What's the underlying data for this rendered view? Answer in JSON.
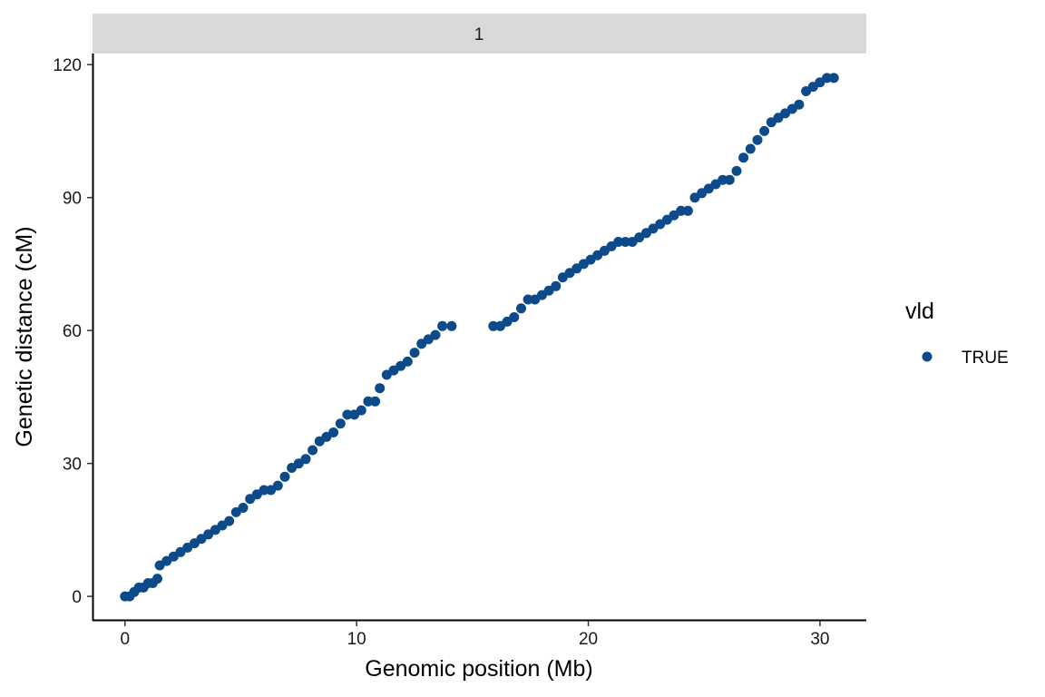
{
  "chart_data": {
    "type": "scatter",
    "facet_label": "1",
    "xlabel": "Genomic position (Mb)",
    "ylabel": "Genetic distance (cM)",
    "xlim": [
      -1.4,
      32.0
    ],
    "ylim": [
      -5.5,
      122.5
    ],
    "x_ticks": [
      0,
      10,
      20,
      30
    ],
    "y_ticks": [
      0,
      30,
      60,
      90,
      120
    ],
    "x_tick_labels": [
      "0",
      "10",
      "20",
      "30"
    ],
    "y_tick_labels": [
      "0",
      "30",
      "60",
      "90",
      "120"
    ],
    "legend": {
      "title": "vld",
      "entries": [
        {
          "label": "TRUE",
          "color": "#0d4a8a"
        }
      ],
      "position": "right"
    },
    "point_color": "#0d4a8a",
    "grid": false,
    "series": [
      {
        "name": "TRUE",
        "points": [
          [
            0.0,
            0.0
          ],
          [
            0.2,
            0.0
          ],
          [
            0.4,
            1.0
          ],
          [
            0.6,
            2.0
          ],
          [
            0.8,
            2.0
          ],
          [
            1.0,
            3.0
          ],
          [
            1.2,
            3.0
          ],
          [
            1.4,
            4.0
          ],
          [
            1.5,
            7.0
          ],
          [
            1.8,
            8.0
          ],
          [
            2.1,
            9.0
          ],
          [
            2.4,
            10.0
          ],
          [
            2.7,
            11.0
          ],
          [
            3.0,
            12.0
          ],
          [
            3.3,
            13.0
          ],
          [
            3.6,
            14.0
          ],
          [
            3.9,
            15.0
          ],
          [
            4.2,
            16.0
          ],
          [
            4.5,
            17.0
          ],
          [
            4.8,
            19.0
          ],
          [
            5.1,
            20.0
          ],
          [
            5.4,
            22.0
          ],
          [
            5.7,
            23.0
          ],
          [
            6.0,
            24.0
          ],
          [
            6.3,
            24.0
          ],
          [
            6.6,
            25.0
          ],
          [
            6.9,
            27.0
          ],
          [
            7.2,
            29.0
          ],
          [
            7.5,
            30.0
          ],
          [
            7.8,
            31.0
          ],
          [
            8.1,
            33.0
          ],
          [
            8.4,
            35.0
          ],
          [
            8.7,
            36.0
          ],
          [
            9.0,
            37.0
          ],
          [
            9.3,
            39.0
          ],
          [
            9.6,
            41.0
          ],
          [
            9.9,
            41.0
          ],
          [
            10.2,
            42.0
          ],
          [
            10.5,
            44.0
          ],
          [
            10.8,
            44.0
          ],
          [
            11.0,
            47.0
          ],
          [
            11.3,
            50.0
          ],
          [
            11.6,
            51.0
          ],
          [
            11.9,
            52.0
          ],
          [
            12.2,
            53.0
          ],
          [
            12.5,
            55.0
          ],
          [
            12.8,
            57.0
          ],
          [
            13.1,
            58.0
          ],
          [
            13.4,
            59.0
          ],
          [
            13.7,
            61.0
          ],
          [
            14.1,
            61.0
          ],
          [
            15.9,
            61.0
          ],
          [
            16.2,
            61.0
          ],
          [
            16.5,
            62.0
          ],
          [
            16.8,
            63.0
          ],
          [
            17.1,
            65.0
          ],
          [
            17.4,
            67.0
          ],
          [
            17.7,
            67.0
          ],
          [
            18.0,
            68.0
          ],
          [
            18.3,
            69.0
          ],
          [
            18.6,
            70.0
          ],
          [
            18.9,
            72.0
          ],
          [
            19.2,
            73.0
          ],
          [
            19.5,
            74.0
          ],
          [
            19.8,
            75.0
          ],
          [
            20.1,
            76.0
          ],
          [
            20.4,
            77.0
          ],
          [
            20.7,
            78.0
          ],
          [
            21.0,
            79.0
          ],
          [
            21.3,
            80.0
          ],
          [
            21.6,
            80.0
          ],
          [
            21.9,
            80.0
          ],
          [
            22.2,
            81.0
          ],
          [
            22.5,
            82.0
          ],
          [
            22.8,
            83.0
          ],
          [
            23.1,
            84.0
          ],
          [
            23.4,
            85.0
          ],
          [
            23.7,
            86.0
          ],
          [
            24.0,
            87.0
          ],
          [
            24.3,
            87.0
          ],
          [
            24.6,
            90.0
          ],
          [
            24.9,
            91.0
          ],
          [
            25.2,
            92.0
          ],
          [
            25.5,
            93.0
          ],
          [
            25.8,
            94.0
          ],
          [
            26.1,
            94.0
          ],
          [
            26.4,
            96.0
          ],
          [
            26.7,
            99.0
          ],
          [
            27.0,
            101.0
          ],
          [
            27.3,
            103.0
          ],
          [
            27.6,
            105.0
          ],
          [
            27.9,
            107.0
          ],
          [
            28.2,
            108.0
          ],
          [
            28.5,
            109.0
          ],
          [
            28.8,
            110.0
          ],
          [
            29.1,
            111.0
          ],
          [
            29.4,
            114.0
          ],
          [
            29.7,
            115.0
          ],
          [
            30.0,
            116.0
          ],
          [
            30.3,
            117.0
          ],
          [
            30.6,
            117.0
          ]
        ]
      }
    ]
  }
}
